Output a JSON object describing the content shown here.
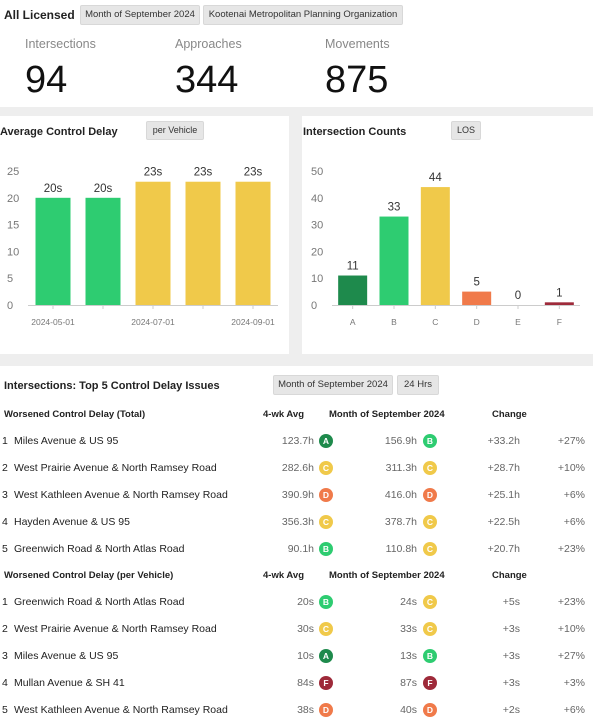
{
  "header": {
    "scope": "All Licensed",
    "period_chip": "Month of September 2024",
    "org_chip": "Kootenai Metropolitan Planning Organization",
    "kpis": [
      {
        "label": "Intersections",
        "value": "94"
      },
      {
        "label": "Approaches",
        "value": "344"
      },
      {
        "label": "Movements",
        "value": "875"
      }
    ]
  },
  "delay_panel": {
    "title": "Average Control Delay",
    "chip": "per Vehicle"
  },
  "counts_panel": {
    "title": "Intersection Counts",
    "chip": "LOS"
  },
  "chart_data": [
    {
      "type": "bar",
      "title": "Average Control Delay",
      "categories": [
        "2024-05-01",
        "2024-06-01",
        "2024-07-01",
        "2024-08-01",
        "2024-09-01"
      ],
      "x_tick_labels": [
        "2024-05-01",
        "",
        "2024-07-01",
        "",
        "2024-09-01"
      ],
      "values": [
        20,
        20,
        23,
        23,
        23
      ],
      "data_labels": [
        "20s",
        "20s",
        "23s",
        "23s",
        "23s"
      ],
      "colors": [
        "#2ecc71",
        "#2ecc71",
        "#f0c94a",
        "#f0c94a",
        "#f0c94a"
      ],
      "ylim": [
        0,
        25
      ],
      "y_ticks": [
        0,
        5,
        10,
        15,
        20,
        25
      ],
      "grid": false
    },
    {
      "type": "bar",
      "title": "Intersection Counts",
      "categories": [
        "A",
        "B",
        "C",
        "D",
        "E",
        "F"
      ],
      "values": [
        11,
        33,
        44,
        5,
        0,
        1
      ],
      "data_labels": [
        "11",
        "33",
        "44",
        "5",
        "0",
        "1"
      ],
      "colors": [
        "#1e8a4c",
        "#2ecc71",
        "#f0c94a",
        "#f07a4a",
        "#999999",
        "#9e2a3a"
      ],
      "ylim": [
        0,
        50
      ],
      "y_ticks": [
        0,
        10,
        20,
        30,
        40,
        50
      ],
      "grid": false
    }
  ],
  "table": {
    "title": "Intersections: Top 5 Control Delay Issues",
    "period_chip": "Month of September 2024",
    "hours_chip": "24 Hrs",
    "los_colors": {
      "A": "#1e8a4c",
      "B": "#2ecc71",
      "C": "#f0c94a",
      "D": "#f07a4a",
      "F": "#9e2a3a"
    },
    "sections": [
      {
        "heading": "Worsened Control Delay (Total)",
        "col_avg": "4-wk Avg",
        "col_month": "Month of September 2024",
        "col_change": "Change",
        "rows": [
          {
            "rank": "1",
            "name": "Miles Avenue & US 95",
            "avg": "123.7h",
            "avg_los": "A",
            "month": "156.9h",
            "month_los": "B",
            "change": "+33.2h",
            "pct": "+27%"
          },
          {
            "rank": "2",
            "name": "West Prairie Avenue & North Ramsey Road",
            "avg": "282.6h",
            "avg_los": "C",
            "month": "311.3h",
            "month_los": "C",
            "change": "+28.7h",
            "pct": "+10%"
          },
          {
            "rank": "3",
            "name": "West Kathleen Avenue & North Ramsey Road",
            "avg": "390.9h",
            "avg_los": "D",
            "month": "416.0h",
            "month_los": "D",
            "change": "+25.1h",
            "pct": "+6%"
          },
          {
            "rank": "4",
            "name": "Hayden Avenue & US 95",
            "avg": "356.3h",
            "avg_los": "C",
            "month": "378.7h",
            "month_los": "C",
            "change": "+22.5h",
            "pct": "+6%"
          },
          {
            "rank": "5",
            "name": "Greenwich Road & North Atlas Road",
            "avg": "90.1h",
            "avg_los": "B",
            "month": "110.8h",
            "month_los": "C",
            "change": "+20.7h",
            "pct": "+23%"
          }
        ]
      },
      {
        "heading": "Worsened Control Delay (per Vehicle)",
        "col_avg": "4-wk Avg",
        "col_month": "Month of September 2024",
        "col_change": "Change",
        "rows": [
          {
            "rank": "1",
            "name": "Greenwich Road & North Atlas Road",
            "avg": "20s",
            "avg_los": "B",
            "month": "24s",
            "month_los": "C",
            "change": "+5s",
            "pct": "+23%"
          },
          {
            "rank": "2",
            "name": "West Prairie Avenue & North Ramsey Road",
            "avg": "30s",
            "avg_los": "C",
            "month": "33s",
            "month_los": "C",
            "change": "+3s",
            "pct": "+10%"
          },
          {
            "rank": "3",
            "name": "Miles Avenue & US 95",
            "avg": "10s",
            "avg_los": "A",
            "month": "13s",
            "month_los": "B",
            "change": "+3s",
            "pct": "+27%"
          },
          {
            "rank": "4",
            "name": "Mullan Avenue & SH 41",
            "avg": "84s",
            "avg_los": "F",
            "month": "87s",
            "month_los": "F",
            "change": "+3s",
            "pct": "+3%"
          },
          {
            "rank": "5",
            "name": "West Kathleen Avenue & North Ramsey Road",
            "avg": "38s",
            "avg_los": "D",
            "month": "40s",
            "month_los": "D",
            "change": "+2s",
            "pct": "+6%"
          }
        ]
      }
    ]
  }
}
